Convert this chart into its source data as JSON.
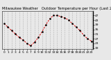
{
  "title": "Milwaukee Weather   Outdoor Temperature per Hour (Last 24 Hours)",
  "hours": [
    0,
    1,
    2,
    3,
    4,
    5,
    6,
    7,
    8,
    9,
    10,
    11,
    12,
    13,
    14,
    15,
    16,
    17,
    18,
    19,
    20,
    21,
    22,
    23
  ],
  "temps": [
    40,
    37,
    34,
    31,
    28,
    26,
    23,
    21,
    24,
    28,
    33,
    39,
    44,
    47,
    47,
    46,
    45,
    43,
    40,
    37,
    34,
    30,
    27,
    25
  ],
  "line_color": "#dd0000",
  "marker_color": "#000000",
  "bg_color": "#e8e8e8",
  "plot_bg_color": "#e8e8e8",
  "grid_color": "#888888",
  "title_bg_color": "#c8c8c8",
  "ylim_min": 18,
  "ylim_max": 51,
  "ylabel_ticks": [
    19,
    23,
    27,
    31,
    35,
    39,
    43,
    47
  ],
  "title_fontsize": 3.8,
  "tick_fontsize": 3.2
}
